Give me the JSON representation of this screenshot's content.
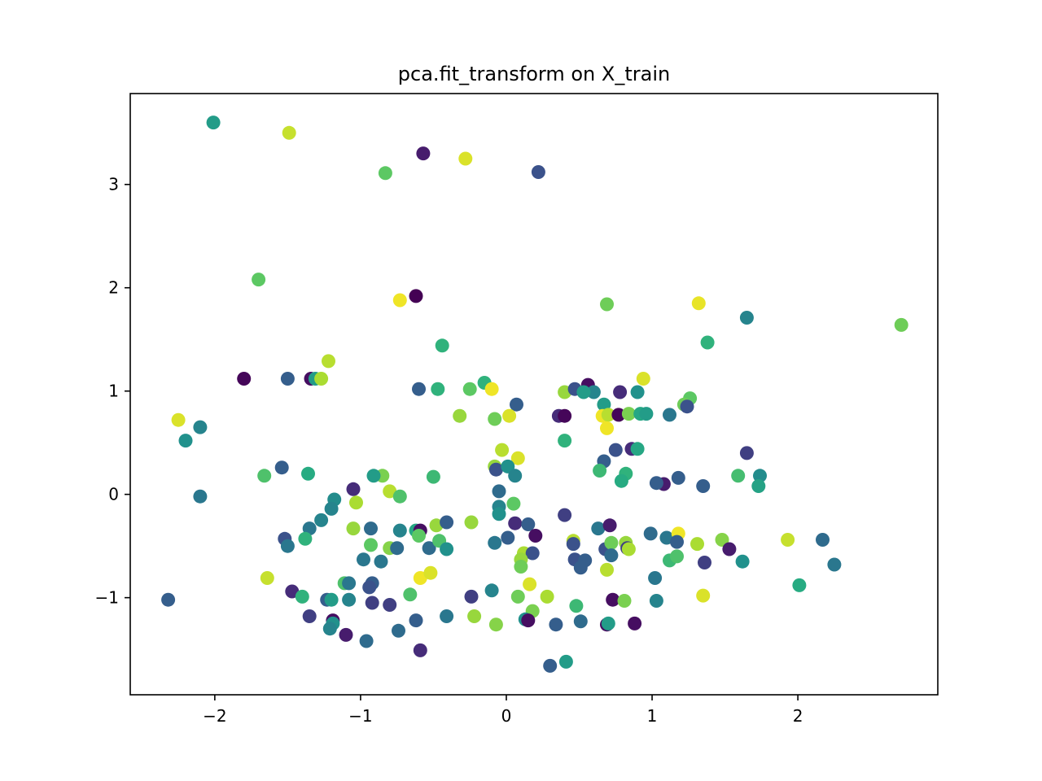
{
  "chart_data": {
    "type": "scatter",
    "title": "pca.fit_transform on X_train",
    "xlabel": "",
    "ylabel": "",
    "xlim": [
      -2.58,
      2.96
    ],
    "ylim": [
      -1.94,
      3.88
    ],
    "x_ticks": [
      -2,
      -1,
      0,
      1,
      2
    ],
    "x_tick_labels": [
      "−2",
      "−1",
      "0",
      "1",
      "2"
    ],
    "y_ticks": [
      -1,
      0,
      1,
      2,
      3
    ],
    "y_tick_labels": [
      "−1",
      "0",
      "1",
      "2",
      "3"
    ],
    "grid": false,
    "legend": "none",
    "colormap": "viridis",
    "point_color_note": "color encodes a class value between 0 (purple) and 1 (yellow)",
    "points": [
      [
        -2.01,
        3.6,
        0.55
      ],
      [
        -1.49,
        3.5,
        0.92
      ],
      [
        -0.57,
        3.3,
        0.1
      ],
      [
        -0.28,
        3.25,
        0.95
      ],
      [
        -0.83,
        3.11,
        0.75
      ],
      [
        0.22,
        3.12,
        0.25
      ],
      [
        -1.7,
        2.08,
        0.75
      ],
      [
        -0.73,
        1.88,
        0.98
      ],
      [
        -0.62,
        1.92,
        0.0
      ],
      [
        0.69,
        1.84,
        0.78
      ],
      [
        1.32,
        1.85,
        0.97
      ],
      [
        1.65,
        1.71,
        0.45
      ],
      [
        2.71,
        1.64,
        0.78
      ],
      [
        -0.44,
        1.44,
        0.65
      ],
      [
        1.38,
        1.47,
        0.65
      ],
      [
        -1.8,
        1.12,
        0.02
      ],
      [
        -1.5,
        1.12,
        0.3
      ],
      [
        -1.34,
        1.12,
        0.05
      ],
      [
        -1.31,
        1.12,
        0.55
      ],
      [
        -1.27,
        1.12,
        0.88
      ],
      [
        -1.22,
        1.29,
        0.9
      ],
      [
        -0.6,
        1.02,
        0.3
      ],
      [
        -0.47,
        1.02,
        0.65
      ],
      [
        -0.25,
        1.02,
        0.75
      ],
      [
        -0.15,
        1.08,
        0.65
      ],
      [
        -0.1,
        1.02,
        0.98
      ],
      [
        0.4,
        0.99,
        0.85
      ],
      [
        0.47,
        1.02,
        0.25
      ],
      [
        0.56,
        1.06,
        0.05
      ],
      [
        0.6,
        0.99,
        0.45
      ],
      [
        0.53,
        0.99,
        0.55
      ],
      [
        0.67,
        0.87,
        0.55
      ],
      [
        0.78,
        0.99,
        0.15
      ],
      [
        0.9,
        0.99,
        0.5
      ],
      [
        0.94,
        1.12,
        0.95
      ],
      [
        1.26,
        0.93,
        0.75
      ],
      [
        1.22,
        0.87,
        0.78
      ],
      [
        1.24,
        0.85,
        0.25
      ],
      [
        0.07,
        0.87,
        0.3
      ],
      [
        -0.32,
        0.76,
        0.85
      ],
      [
        -0.08,
        0.73,
        0.78
      ],
      [
        0.02,
        0.76,
        0.95
      ],
      [
        0.36,
        0.76,
        0.15
      ],
      [
        0.4,
        0.76,
        0.02
      ],
      [
        0.66,
        0.76,
        0.98
      ],
      [
        0.7,
        0.77,
        0.9
      ],
      [
        0.77,
        0.77,
        0.02
      ],
      [
        0.84,
        0.78,
        0.8
      ],
      [
        0.92,
        0.78,
        0.6
      ],
      [
        0.96,
        0.78,
        0.55
      ],
      [
        1.12,
        0.77,
        0.4
      ],
      [
        0.69,
        0.64,
        0.98
      ],
      [
        -2.25,
        0.72,
        0.95
      ],
      [
        -2.1,
        0.65,
        0.45
      ],
      [
        -2.2,
        0.52,
        0.5
      ],
      [
        0.4,
        0.52,
        0.65
      ],
      [
        -0.03,
        0.43,
        0.9
      ],
      [
        0.08,
        0.35,
        0.95
      ],
      [
        0.75,
        0.43,
        0.25
      ],
      [
        0.86,
        0.44,
        0.15
      ],
      [
        0.9,
        0.44,
        0.6
      ],
      [
        1.65,
        0.4,
        0.2
      ],
      [
        0.67,
        0.32,
        0.3
      ],
      [
        -0.08,
        0.27,
        0.85
      ],
      [
        -0.07,
        0.24,
        0.25
      ],
      [
        0.01,
        0.27,
        0.5
      ],
      [
        0.06,
        0.18,
        0.45
      ],
      [
        0.64,
        0.23,
        0.68
      ],
      [
        0.82,
        0.2,
        0.65
      ],
      [
        0.79,
        0.13,
        0.62
      ],
      [
        1.18,
        0.16,
        0.3
      ],
      [
        1.08,
        0.1,
        0.1
      ],
      [
        1.03,
        0.11,
        0.3
      ],
      [
        1.35,
        0.08,
        0.3
      ],
      [
        1.59,
        0.18,
        0.7
      ],
      [
        1.74,
        0.18,
        0.48
      ],
      [
        1.73,
        0.08,
        0.58
      ],
      [
        -1.54,
        0.26,
        0.3
      ],
      [
        -1.66,
        0.18,
        0.72
      ],
      [
        -1.36,
        0.2,
        0.62
      ],
      [
        -0.85,
        0.18,
        0.8
      ],
      [
        -0.91,
        0.18,
        0.55
      ],
      [
        -0.5,
        0.17,
        0.68
      ],
      [
        -0.8,
        0.03,
        0.9
      ],
      [
        -0.73,
        -0.02,
        0.72
      ],
      [
        -1.05,
        0.05,
        0.15
      ],
      [
        -1.18,
        -0.05,
        0.48
      ],
      [
        -2.1,
        -0.02,
        0.4
      ],
      [
        -1.03,
        -0.08,
        0.88
      ],
      [
        -1.2,
        -0.14,
        0.45
      ],
      [
        -0.05,
        0.03,
        0.35
      ],
      [
        -0.05,
        -0.12,
        0.45
      ],
      [
        -0.05,
        -0.19,
        0.5
      ],
      [
        0.05,
        -0.09,
        0.75
      ],
      [
        -1.27,
        -0.25,
        0.45
      ],
      [
        -1.35,
        -0.33,
        0.4
      ],
      [
        -1.38,
        -0.43,
        0.65
      ],
      [
        -1.52,
        -0.43,
        0.25
      ],
      [
        -1.5,
        -0.5,
        0.4
      ],
      [
        -1.05,
        -0.33,
        0.85
      ],
      [
        -0.93,
        -0.33,
        0.35
      ],
      [
        -0.73,
        -0.35,
        0.45
      ],
      [
        -0.62,
        -0.35,
        0.6
      ],
      [
        -0.59,
        -0.35,
        0.05
      ],
      [
        -0.6,
        -0.4,
        0.75
      ],
      [
        -0.48,
        -0.3,
        0.85
      ],
      [
        -0.41,
        -0.27,
        0.3
      ],
      [
        -0.24,
        -0.27,
        0.85
      ],
      [
        0.06,
        -0.28,
        0.15
      ],
      [
        0.15,
        -0.29,
        0.3
      ],
      [
        0.2,
        -0.4,
        0.05
      ],
      [
        0.4,
        -0.2,
        0.2
      ],
      [
        0.63,
        -0.33,
        0.4
      ],
      [
        0.71,
        -0.3,
        0.1
      ],
      [
        -0.08,
        -0.47,
        0.4
      ],
      [
        0.01,
        -0.42,
        0.3
      ],
      [
        0.46,
        -0.45,
        0.9
      ],
      [
        0.46,
        -0.48,
        0.25
      ],
      [
        0.68,
        -0.53,
        0.25
      ],
      [
        0.72,
        -0.47,
        0.78
      ],
      [
        0.82,
        -0.47,
        0.85
      ],
      [
        0.83,
        -0.52,
        0.2
      ],
      [
        0.84,
        -0.53,
        0.88
      ],
      [
        0.99,
        -0.38,
        0.35
      ],
      [
        1.1,
        -0.42,
        0.4
      ],
      [
        1.18,
        -0.38,
        0.98
      ],
      [
        1.17,
        -0.46,
        0.3
      ],
      [
        1.31,
        -0.48,
        0.88
      ],
      [
        1.48,
        -0.44,
        0.82
      ],
      [
        1.53,
        -0.53,
        0.1
      ],
      [
        1.93,
        -0.44,
        0.92
      ],
      [
        2.17,
        -0.44,
        0.35
      ],
      [
        -0.93,
        -0.49,
        0.75
      ],
      [
        -0.8,
        -0.52,
        0.82
      ],
      [
        -0.75,
        -0.52,
        0.35
      ],
      [
        -0.53,
        -0.52,
        0.35
      ],
      [
        -0.46,
        -0.45,
        0.72
      ],
      [
        -0.41,
        -0.53,
        0.5
      ],
      [
        -0.86,
        -0.65,
        0.4
      ],
      [
        -0.98,
        -0.63,
        0.4
      ],
      [
        0.12,
        -0.57,
        0.88
      ],
      [
        0.18,
        -0.57,
        0.25
      ],
      [
        0.1,
        -0.63,
        0.85
      ],
      [
        0.1,
        -0.7,
        0.78
      ],
      [
        0.47,
        -0.63,
        0.25
      ],
      [
        0.54,
        -0.64,
        0.3
      ],
      [
        0.51,
        -0.71,
        0.3
      ],
      [
        0.69,
        -0.73,
        0.9
      ],
      [
        0.72,
        -0.59,
        0.35
      ],
      [
        1.12,
        -0.64,
        0.68
      ],
      [
        1.17,
        -0.6,
        0.72
      ],
      [
        1.36,
        -0.66,
        0.2
      ],
      [
        1.62,
        -0.65,
        0.5
      ],
      [
        2.25,
        -0.68,
        0.4
      ],
      [
        1.02,
        -0.81,
        0.4
      ],
      [
        2.01,
        -0.88,
        0.62
      ],
      [
        1.35,
        -0.98,
        0.95
      ],
      [
        -2.32,
        -1.02,
        0.3
      ],
      [
        -1.64,
        -0.81,
        0.92
      ],
      [
        -1.47,
        -0.94,
        0.15
      ],
      [
        -1.4,
        -0.99,
        0.65
      ],
      [
        -1.11,
        -0.86,
        0.72
      ],
      [
        -1.08,
        -0.86,
        0.4
      ],
      [
        -0.92,
        -0.86,
        0.3
      ],
      [
        -0.94,
        -0.9,
        0.25
      ],
      [
        -0.66,
        -0.97,
        0.72
      ],
      [
        -0.59,
        -0.81,
        0.98
      ],
      [
        -0.52,
        -0.76,
        0.95
      ],
      [
        -1.23,
        -1.02,
        0.3
      ],
      [
        -1.2,
        -1.02,
        0.55
      ],
      [
        -1.08,
        -1.02,
        0.45
      ],
      [
        -0.92,
        -1.05,
        0.2
      ],
      [
        -0.8,
        -1.07,
        0.2
      ],
      [
        -0.24,
        -0.99,
        0.2
      ],
      [
        -0.1,
        -0.93,
        0.45
      ],
      [
        0.08,
        -0.99,
        0.78
      ],
      [
        0.16,
        -0.87,
        0.95
      ],
      [
        0.28,
        -0.99,
        0.88
      ],
      [
        0.18,
        -1.13,
        0.8
      ],
      [
        0.13,
        -1.21,
        0.5
      ],
      [
        0.15,
        -1.22,
        0.05
      ],
      [
        0.48,
        -1.08,
        0.68
      ],
      [
        0.73,
        -1.02,
        0.05
      ],
      [
        0.81,
        -1.03,
        0.8
      ],
      [
        1.03,
        -1.03,
        0.45
      ],
      [
        0.34,
        -1.26,
        0.3
      ],
      [
        0.51,
        -1.23,
        0.35
      ],
      [
        0.69,
        -1.26,
        0.05
      ],
      [
        0.7,
        -1.25,
        0.55
      ],
      [
        0.88,
        -1.25,
        0.05
      ],
      [
        -1.35,
        -1.18,
        0.2
      ],
      [
        -1.19,
        -1.22,
        0.05
      ],
      [
        -1.19,
        -1.25,
        0.5
      ],
      [
        -1.21,
        -1.3,
        0.45
      ],
      [
        -1.1,
        -1.36,
        0.1
      ],
      [
        -0.96,
        -1.42,
        0.35
      ],
      [
        -0.74,
        -1.32,
        0.35
      ],
      [
        -0.62,
        -1.22,
        0.3
      ],
      [
        -0.41,
        -1.18,
        0.4
      ],
      [
        -0.22,
        -1.18,
        0.85
      ],
      [
        -0.07,
        -1.26,
        0.82
      ],
      [
        -0.59,
        -1.51,
        0.15
      ],
      [
        0.3,
        -1.66,
        0.3
      ],
      [
        0.41,
        -1.62,
        0.55
      ]
    ]
  }
}
